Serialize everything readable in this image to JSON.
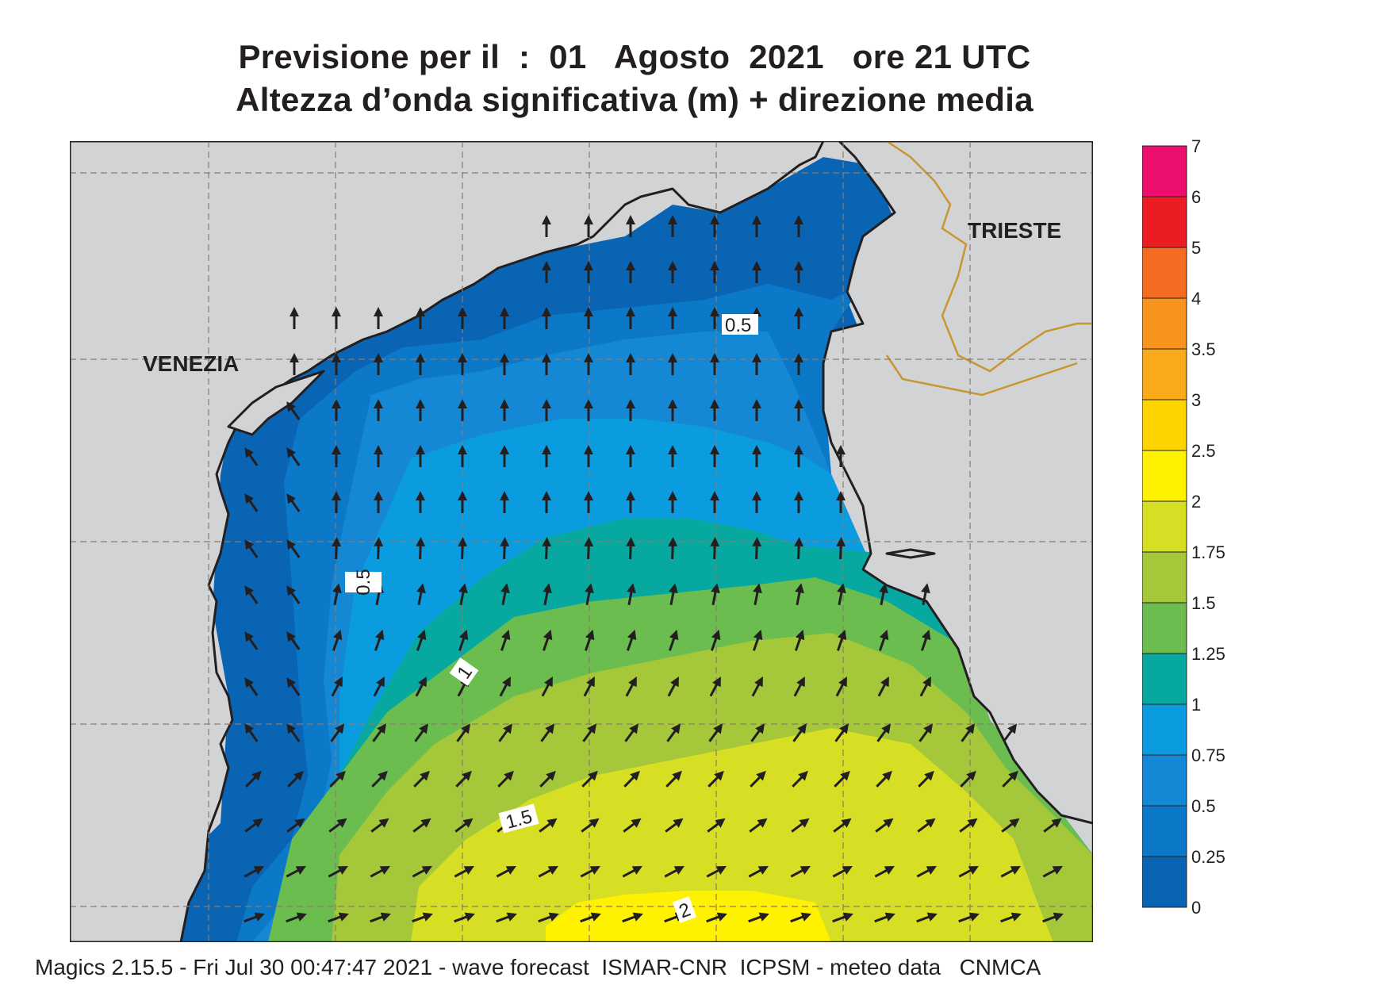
{
  "header": {
    "title_line1": "Previsione per il  :  01   Agosto  2021   ore 21 UTC",
    "title_line2": "Altezza d’onda significativa (m) + direzione media"
  },
  "map": {
    "places": [
      "VENEZIA",
      "TRIESTE"
    ],
    "contour_labels": [
      "0.5",
      "0.5",
      "1",
      "1.5",
      "2"
    ],
    "colors": {
      "land": "#d2d3d5",
      "coast": "#231f20",
      "border": "#c8962e",
      "grid": "#8c7b6b"
    },
    "arrow_icon": "direction-arrow-icon"
  },
  "legend": {
    "labels": [
      "0",
      "0.25",
      "0.5",
      "0.75",
      "1",
      "1.25",
      "1.5",
      "1.75",
      "2",
      "2.5",
      "3",
      "3.5",
      "4",
      "5",
      "6",
      "7"
    ],
    "colors": [
      "#0a64b4",
      "#0b78c8",
      "#1488d4",
      "#0b9ce0",
      "#07a8a0",
      "#6abd4e",
      "#a4c83a",
      "#d6df24",
      "#fff200",
      "#fdd400",
      "#fbaa19",
      "#f7941d",
      "#f36c21",
      "#ec1c24",
      "#ec0f6e"
    ]
  },
  "footer": {
    "text": "Magics 2.15.5 - Fri Jul 30 00:47:47 2021 - wave forecast  ISMAR-CNR  ICPSM - meteo data   CNMCA"
  }
}
